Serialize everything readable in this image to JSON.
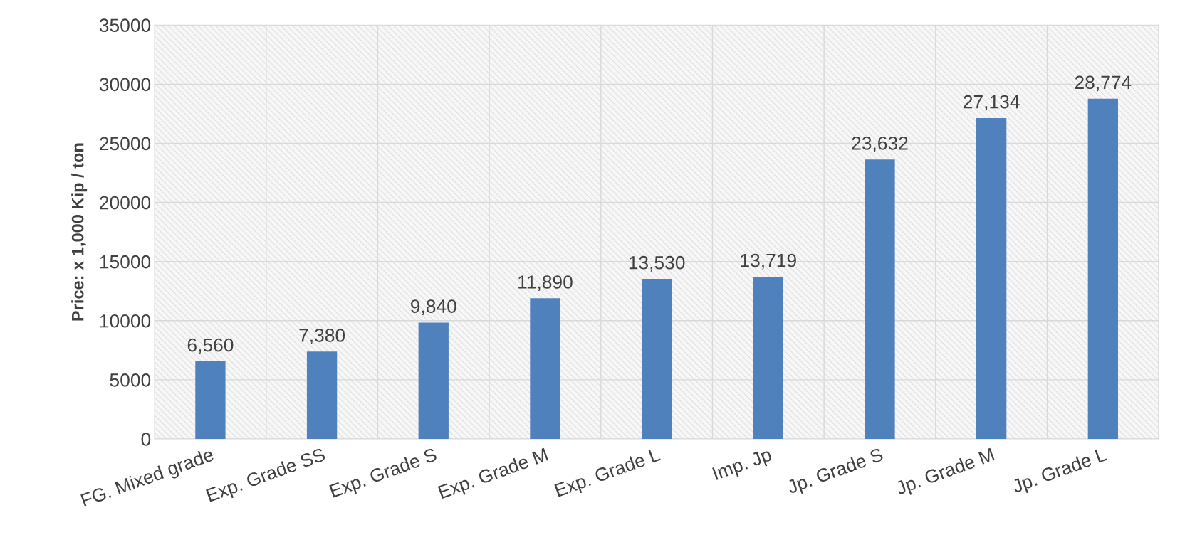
{
  "chart_data": {
    "type": "bar",
    "ylabel": "Price: x 1,000 Kip / ton",
    "categories": [
      "FG. Mixed grade",
      "Exp. Grade SS",
      "Exp. Grade S",
      "Exp. Grade M",
      "Exp. Grade L",
      "Imp. Jp",
      "Jp. Grade S",
      "Jp. Grade M",
      "Jp. Grade L"
    ],
    "values": [
      6560,
      7380,
      9840,
      11890,
      13530,
      13719,
      23632,
      27134,
      28774
    ],
    "value_labels": [
      "6,560",
      "7,380",
      "9,840",
      "11,890",
      "13,530",
      "13,719",
      "23,632",
      "27,134",
      "28,774"
    ],
    "color": "#4f81bd",
    "ylim": [
      0,
      35000
    ],
    "yticks": [
      0,
      5000,
      10000,
      15000,
      20000,
      25000,
      30000,
      35000
    ],
    "grid": true
  }
}
